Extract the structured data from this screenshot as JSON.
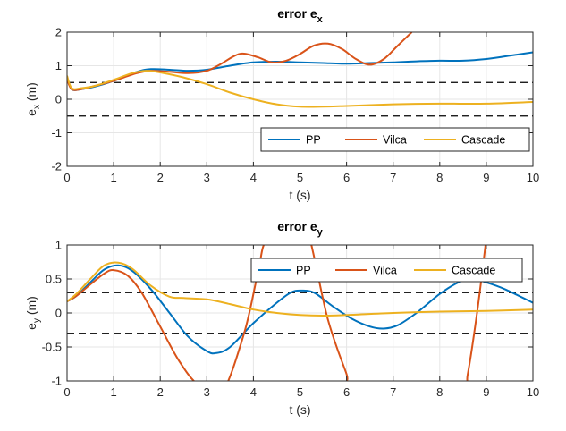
{
  "colors": {
    "PP": "#0072BD",
    "Vilca": "#D95319",
    "Cascade": "#EDB120",
    "threshold": "#000000",
    "grid": "#e6e6e6",
    "axis": "#262626"
  },
  "chart_data": [
    {
      "type": "line",
      "title_main": "error e",
      "title_sub": "x",
      "xlabel": "t (s)",
      "ylabel_main": "e",
      "ylabel_sub": "x",
      "ylabel_unit": " (m)",
      "xlim": [
        0,
        10
      ],
      "ylim": [
        -2,
        2
      ],
      "xticks": [
        0,
        1,
        2,
        3,
        4,
        5,
        6,
        7,
        8,
        9,
        10
      ],
      "yticks": [
        -2,
        -1,
        0,
        1,
        2
      ],
      "grid": true,
      "legend_position": "bottom-right",
      "legend_orientation": "horizontal",
      "thresholds": [
        0.5,
        -0.5
      ],
      "series": [
        {
          "name": "PP",
          "points": [
            [
              0,
              0.65
            ],
            [
              0.1,
              0.3
            ],
            [
              0.3,
              0.3
            ],
            [
              0.6,
              0.38
            ],
            [
              1,
              0.55
            ],
            [
              1.5,
              0.82
            ],
            [
              1.8,
              0.9
            ],
            [
              2.2,
              0.88
            ],
            [
              2.6,
              0.85
            ],
            [
              3,
              0.88
            ],
            [
              3.5,
              1
            ],
            [
              4,
              1.1
            ],
            [
              4.5,
              1.12
            ],
            [
              5,
              1.1
            ],
            [
              5.5,
              1.08
            ],
            [
              6,
              1.06
            ],
            [
              6.5,
              1.08
            ],
            [
              7,
              1.1
            ],
            [
              7.5,
              1.13
            ],
            [
              8,
              1.15
            ],
            [
              8.5,
              1.15
            ],
            [
              9,
              1.2
            ],
            [
              9.5,
              1.3
            ],
            [
              10,
              1.4
            ]
          ]
        },
        {
          "name": "Vilca",
          "points": [
            [
              0,
              0.6
            ],
            [
              0.1,
              0.3
            ],
            [
              0.3,
              0.3
            ],
            [
              0.6,
              0.4
            ],
            [
              1,
              0.55
            ],
            [
              1.5,
              0.78
            ],
            [
              1.8,
              0.85
            ],
            [
              2.2,
              0.82
            ],
            [
              2.6,
              0.78
            ],
            [
              3,
              0.85
            ],
            [
              3.3,
              1.05
            ],
            [
              3.6,
              1.3
            ],
            [
              3.8,
              1.36
            ],
            [
              4.1,
              1.25
            ],
            [
              4.4,
              1.1
            ],
            [
              4.7,
              1.15
            ],
            [
              5,
              1.35
            ],
            [
              5.3,
              1.6
            ],
            [
              5.6,
              1.66
            ],
            [
              5.9,
              1.5
            ],
            [
              6.2,
              1.2
            ],
            [
              6.5,
              1.03
            ],
            [
              6.8,
              1.2
            ],
            [
              7.1,
              1.6
            ],
            [
              7.4,
              2
            ]
          ]
        },
        {
          "name": "Cascade",
          "points": [
            [
              0,
              0.7
            ],
            [
              0.1,
              0.33
            ],
            [
              0.3,
              0.33
            ],
            [
              0.6,
              0.4
            ],
            [
              1,
              0.58
            ],
            [
              1.4,
              0.78
            ],
            [
              1.7,
              0.85
            ],
            [
              2,
              0.8
            ],
            [
              2.5,
              0.65
            ],
            [
              3,
              0.45
            ],
            [
              3.5,
              0.2
            ],
            [
              4,
              0
            ],
            [
              4.5,
              -0.15
            ],
            [
              5,
              -0.22
            ],
            [
              5.5,
              -0.22
            ],
            [
              6,
              -0.2
            ],
            [
              7,
              -0.15
            ],
            [
              8,
              -0.13
            ],
            [
              9,
              -0.13
            ],
            [
              10,
              -0.08
            ]
          ]
        }
      ]
    },
    {
      "type": "line",
      "title_main": "error e",
      "title_sub": "y",
      "xlabel": "t (s)",
      "ylabel_main": "e",
      "ylabel_sub": "y",
      "ylabel_unit": " (m)",
      "xlim": [
        0,
        10
      ],
      "ylim": [
        -1,
        1
      ],
      "xticks": [
        0,
        1,
        2,
        3,
        4,
        5,
        6,
        7,
        8,
        9,
        10
      ],
      "yticks": [
        -1,
        -0.5,
        0,
        0.5,
        1
      ],
      "grid": true,
      "legend_position": "top-right",
      "legend_orientation": "horizontal",
      "thresholds": [
        0.3,
        -0.3
      ],
      "series": [
        {
          "name": "PP",
          "points": [
            [
              0,
              0.17
            ],
            [
              0.2,
              0.25
            ],
            [
              0.5,
              0.45
            ],
            [
              0.8,
              0.64
            ],
            [
              1.1,
              0.7
            ],
            [
              1.4,
              0.62
            ],
            [
              1.8,
              0.35
            ],
            [
              2.2,
              0
            ],
            [
              2.6,
              -0.35
            ],
            [
              3,
              -0.56
            ],
            [
              3.2,
              -0.59
            ],
            [
              3.5,
              -0.5
            ],
            [
              4,
              -0.15
            ],
            [
              4.5,
              0.15
            ],
            [
              4.8,
              0.3
            ],
            [
              5,
              0.33
            ],
            [
              5.3,
              0.3
            ],
            [
              5.7,
              0.1
            ],
            [
              6.1,
              -0.08
            ],
            [
              6.5,
              -0.2
            ],
            [
              6.8,
              -0.23
            ],
            [
              7.1,
              -0.18
            ],
            [
              7.5,
              0
            ],
            [
              8,
              0.28
            ],
            [
              8.4,
              0.45
            ],
            [
              8.7,
              0.5
            ],
            [
              9,
              0.45
            ],
            [
              9.4,
              0.35
            ],
            [
              10,
              0.15
            ]
          ]
        },
        {
          "name": "Vilca",
          "points": [
            [
              0,
              0.17
            ],
            [
              0.2,
              0.25
            ],
            [
              0.5,
              0.42
            ],
            [
              0.8,
              0.58
            ],
            [
              1,
              0.63
            ],
            [
              1.3,
              0.55
            ],
            [
              1.6,
              0.3
            ],
            [
              2,
              -0.2
            ],
            [
              2.4,
              -0.7
            ],
            [
              2.8,
              -1.05
            ],
            [
              3.3,
              -1.2
            ],
            [
              3.8,
              -0.3
            ],
            [
              4.1,
              0.6
            ],
            [
              4.3,
              1.1
            ],
            [
              5,
              1.5
            ],
            [
              5.6,
              -0.1
            ],
            [
              6,
              -0.9
            ],
            [
              6.1,
              -1.1
            ],
            [
              7.5,
              -1.7
            ],
            [
              8.5,
              -1.1
            ],
            [
              8.6,
              -0.9
            ],
            [
              8.8,
              0
            ],
            [
              9,
              1.1
            ]
          ]
        },
        {
          "name": "Cascade",
          "points": [
            [
              0,
              0.17
            ],
            [
              0.2,
              0.28
            ],
            [
              0.5,
              0.5
            ],
            [
              0.8,
              0.7
            ],
            [
              1.1,
              0.74
            ],
            [
              1.4,
              0.65
            ],
            [
              1.8,
              0.4
            ],
            [
              2.2,
              0.24
            ],
            [
              2.5,
              0.22
            ],
            [
              3,
              0.2
            ],
            [
              3.5,
              0.13
            ],
            [
              4,
              0.05
            ],
            [
              4.5,
              0
            ],
            [
              5,
              -0.03
            ],
            [
              5.5,
              -0.04
            ],
            [
              6,
              -0.03
            ],
            [
              7,
              0
            ],
            [
              8,
              0.02
            ],
            [
              9,
              0.03
            ],
            [
              10,
              0.05
            ]
          ]
        }
      ]
    }
  ]
}
